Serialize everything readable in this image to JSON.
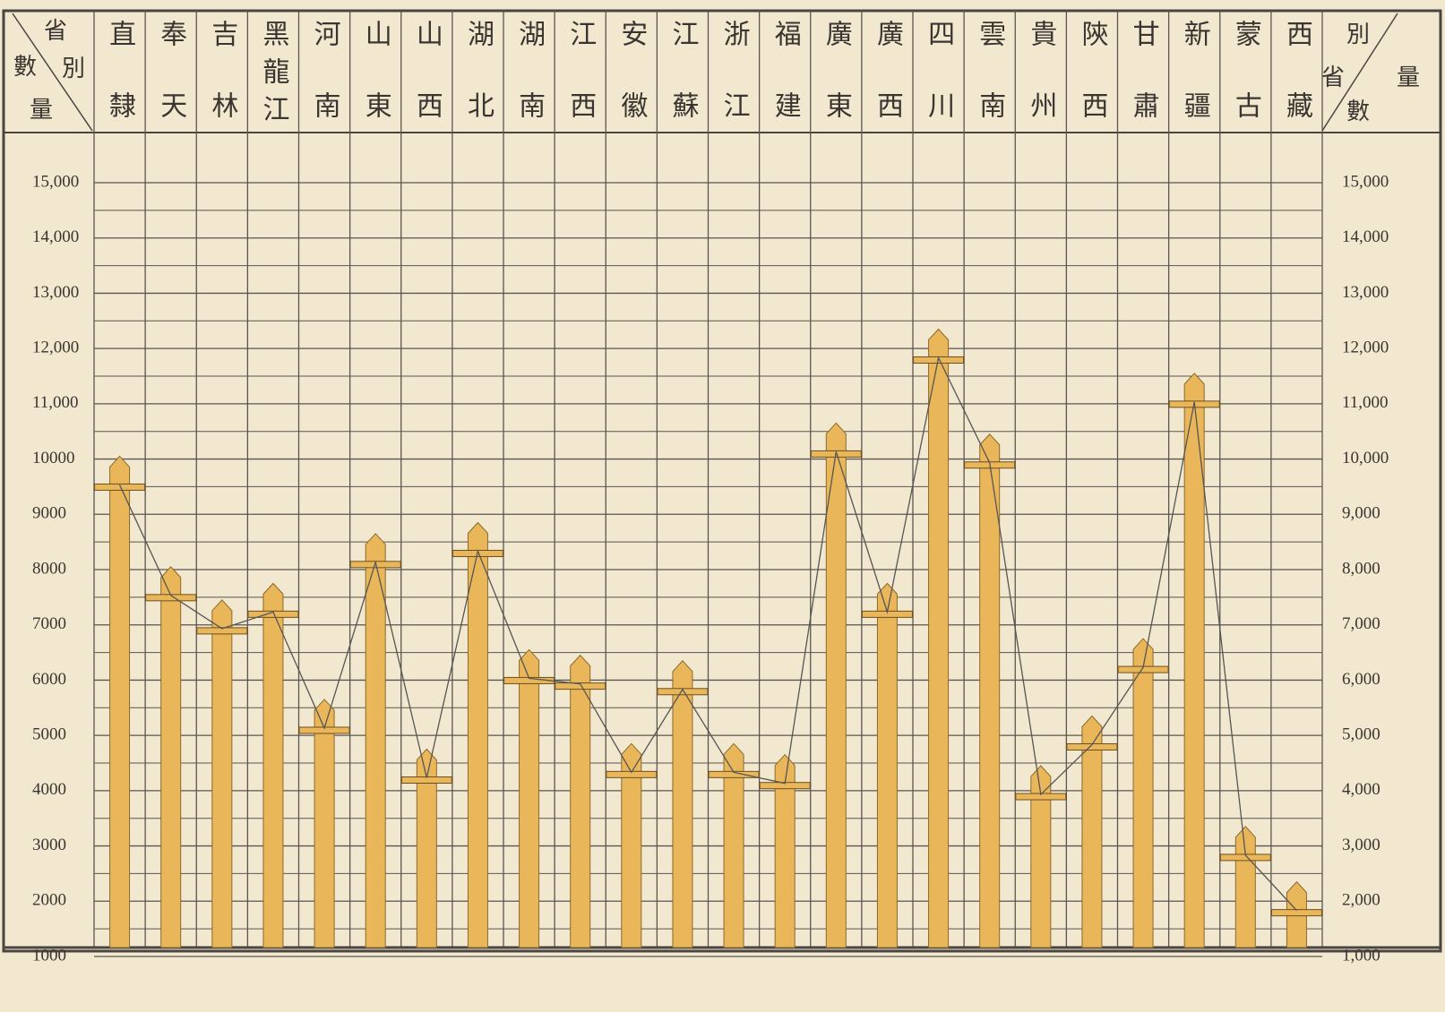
{
  "chart_data": {
    "type": "pole",
    "corner_left": [
      "省",
      "別",
      "數",
      "量"
    ],
    "corner_right": [
      "別",
      "量",
      "省",
      "數"
    ],
    "categories": [
      "直隸",
      "奉天",
      "吉林",
      "黑龍江",
      "河南",
      "山東",
      "山西",
      "湖北",
      "湖南",
      "江西",
      "安徽",
      "江蘇",
      "浙江",
      "福建",
      "廣東",
      "廣西",
      "四川",
      "雲南",
      "貴州",
      "陝西",
      "甘肅",
      "新疆",
      "蒙古",
      "西藏"
    ],
    "values": [
      9500,
      7500,
      6900,
      7200,
      5100,
      8100,
      4200,
      8300,
      6000,
      5900,
      4300,
      5800,
      4300,
      4100,
      10100,
      7200,
      11800,
      9900,
      3900,
      4800,
      6200,
      11000,
      2800,
      1800
    ],
    "color": "#eab65a",
    "ylim": [
      1000,
      15000
    ],
    "yticks": [
      1000,
      2000,
      3000,
      4000,
      5000,
      6000,
      7000,
      8000,
      9000,
      10000,
      {
        "value": 11000,
        "label": "11,000"
      },
      {
        "value": 12000,
        "label": "12,000"
      },
      {
        "value": 13000,
        "label": "13,000"
      },
      {
        "value": 14000,
        "label": "14,000"
      },
      {
        "value": 15000,
        "label": "15,000"
      }
    ],
    "y2lim": [
      1000,
      15000
    ],
    "y2ticks": [
      {
        "value": 1000,
        "label": "1,000"
      },
      {
        "value": 2000,
        "label": "2,000"
      },
      {
        "value": 3000,
        "label": "3,000"
      },
      {
        "value": 4000,
        "label": "4,000"
      },
      {
        "value": 5000,
        "label": "5,000"
      },
      {
        "value": 6000,
        "label": "6,000"
      },
      {
        "value": 7000,
        "label": "7,000"
      },
      {
        "value": 8000,
        "label": "8,000"
      },
      {
        "value": 9000,
        "label": "9,000"
      },
      {
        "value": 10000,
        "label": "10,000"
      },
      {
        "value": 11000,
        "label": "11,000"
      },
      {
        "value": 12000,
        "label": "12,000"
      },
      {
        "value": 13000,
        "label": "13,000"
      },
      {
        "value": 14000,
        "label": "14,000"
      },
      {
        "value": 15000,
        "label": "15,000"
      }
    ],
    "grid": true
  }
}
